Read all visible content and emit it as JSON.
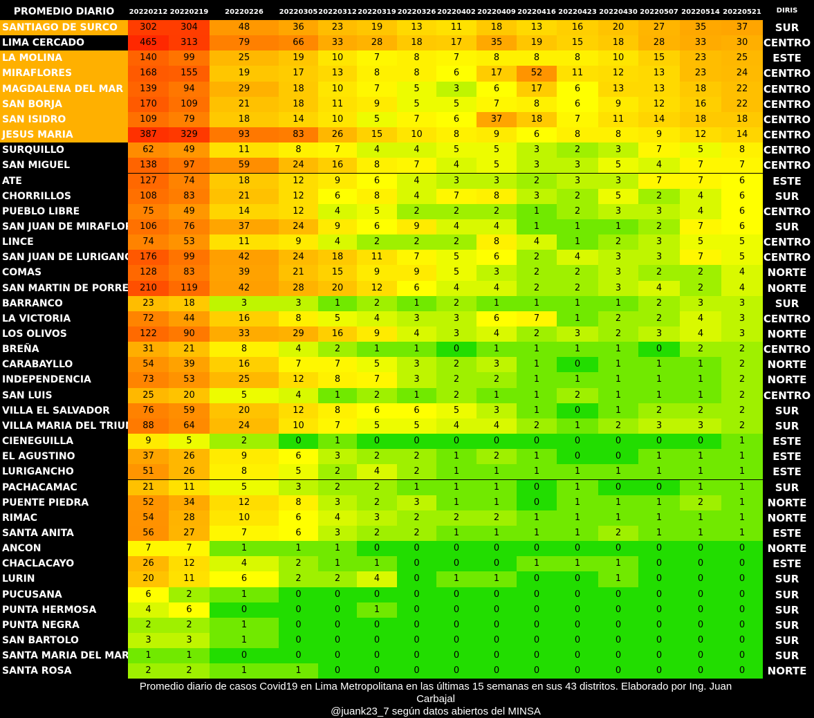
{
  "chart_data": {
    "type": "heatmap",
    "title": "PROMEDIO DIARIO",
    "region_header": "DIRIS",
    "columns": [
      "20220212",
      "20220219",
      "20220226",
      "20220305",
      "20220312",
      "20220319",
      "20220326",
      "20220402",
      "20220409",
      "20220416",
      "20220423",
      "20220430",
      "20220507",
      "20220514",
      "20220521"
    ],
    "highlight_color": "#ffb000",
    "rows": [
      {
        "name": "SANTIAGO DE SURCO",
        "values": [
          302,
          304,
          48,
          36,
          23,
          19,
          13,
          11,
          18,
          13,
          16,
          20,
          27,
          35,
          37
        ],
        "diris": "SUR",
        "highlight": true
      },
      {
        "name": "LIMA CERCADO",
        "values": [
          465,
          313,
          79,
          66,
          33,
          28,
          18,
          17,
          35,
          19,
          15,
          18,
          28,
          33,
          30
        ],
        "diris": "CENTRO",
        "highlight": false
      },
      {
        "name": "LA MOLINA",
        "values": [
          140,
          99,
          25,
          19,
          10,
          7,
          8,
          7,
          8,
          8,
          8,
          10,
          15,
          23,
          25
        ],
        "diris": "ESTE",
        "highlight": true
      },
      {
        "name": "MIRAFLORES",
        "values": [
          168,
          155,
          19,
          17,
          13,
          8,
          8,
          6,
          17,
          52,
          11,
          12,
          13,
          23,
          24
        ],
        "diris": "CENTRO",
        "highlight": true
      },
      {
        "name": "MAGDALENA DEL MAR",
        "values": [
          139,
          94,
          29,
          18,
          10,
          7,
          5,
          3,
          6,
          17,
          6,
          13,
          13,
          18,
          22
        ],
        "diris": "CENTRO",
        "highlight": true
      },
      {
        "name": "SAN BORJA",
        "values": [
          170,
          109,
          21,
          18,
          11,
          9,
          5,
          5,
          7,
          8,
          6,
          9,
          12,
          16,
          22
        ],
        "diris": "CENTRO",
        "highlight": true
      },
      {
        "name": "SAN ISIDRO",
        "values": [
          109,
          79,
          18,
          14,
          10,
          5,
          7,
          6,
          37,
          18,
          7,
          11,
          14,
          18,
          18
        ],
        "diris": "CENTRO",
        "highlight": true
      },
      {
        "name": "JESUS MARIA",
        "values": [
          387,
          329,
          93,
          83,
          26,
          15,
          10,
          8,
          9,
          6,
          8,
          8,
          9,
          12,
          14
        ],
        "diris": "CENTRO",
        "highlight": true
      },
      {
        "name": "SURQUILLO",
        "values": [
          62,
          49,
          11,
          8,
          7,
          4,
          4,
          5,
          5,
          3,
          2,
          3,
          7,
          5,
          8
        ],
        "diris": "CENTRO",
        "highlight": false
      },
      {
        "name": "SAN MIGUEL",
        "values": [
          138,
          97,
          59,
          24,
          16,
          8,
          7,
          4,
          5,
          3,
          3,
          5,
          4,
          7,
          7
        ],
        "diris": "CENTRO",
        "highlight": false
      },
      {
        "name": "ATE",
        "values": [
          127,
          74,
          18,
          12,
          9,
          6,
          4,
          3,
          3,
          2,
          3,
          3,
          7,
          7,
          6
        ],
        "diris": "ESTE",
        "highlight": false
      },
      {
        "name": "CHORRILLOS",
        "values": [
          108,
          83,
          21,
          12,
          6,
          8,
          4,
          7,
          8,
          3,
          2,
          5,
          2,
          4,
          6
        ],
        "diris": "SUR",
        "highlight": false
      },
      {
        "name": "PUEBLO LIBRE",
        "values": [
          75,
          49,
          14,
          12,
          4,
          5,
          2,
          2,
          2,
          1,
          2,
          3,
          3,
          4,
          6
        ],
        "diris": "CENTRO",
        "highlight": false
      },
      {
        "name": "SAN JUAN DE MIRAFLORES",
        "values": [
          106,
          76,
          37,
          24,
          9,
          6,
          9,
          4,
          4,
          1,
          1,
          1,
          2,
          7,
          6
        ],
        "diris": "SUR",
        "highlight": false
      },
      {
        "name": "LINCE",
        "values": [
          74,
          53,
          11,
          9,
          4,
          2,
          2,
          2,
          8,
          4,
          1,
          2,
          3,
          5,
          5
        ],
        "diris": "CENTRO",
        "highlight": false
      },
      {
        "name": "SAN JUAN DE LURIGANCHO",
        "values": [
          176,
          99,
          42,
          24,
          18,
          11,
          7,
          5,
          6,
          2,
          4,
          3,
          3,
          7,
          5
        ],
        "diris": "CENTRO",
        "highlight": false
      },
      {
        "name": "COMAS",
        "values": [
          128,
          83,
          39,
          21,
          15,
          9,
          9,
          5,
          3,
          2,
          2,
          3,
          2,
          2,
          4
        ],
        "diris": "NORTE",
        "highlight": false
      },
      {
        "name": "SAN MARTIN DE PORRES",
        "values": [
          210,
          119,
          42,
          28,
          20,
          12,
          6,
          4,
          4,
          2,
          2,
          3,
          4,
          2,
          4
        ],
        "diris": "NORTE",
        "highlight": false
      },
      {
        "name": "BARRANCO",
        "values": [
          23,
          18,
          3,
          3,
          1,
          2,
          1,
          2,
          1,
          1,
          1,
          1,
          2,
          3,
          3
        ],
        "diris": "SUR",
        "highlight": false
      },
      {
        "name": "LA VICTORIA",
        "values": [
          72,
          44,
          16,
          8,
          5,
          4,
          3,
          3,
          6,
          7,
          1,
          2,
          2,
          4,
          3
        ],
        "diris": "CENTRO",
        "highlight": false
      },
      {
        "name": "LOS OLIVOS",
        "values": [
          122,
          90,
          33,
          29,
          16,
          9,
          4,
          3,
          4,
          2,
          3,
          2,
          3,
          4,
          3
        ],
        "diris": "NORTE",
        "highlight": false
      },
      {
        "name": "BREÑA",
        "values": [
          31,
          21,
          8,
          4,
          2,
          1,
          1,
          0,
          1,
          1,
          1,
          1,
          0,
          2,
          2
        ],
        "diris": "CENTRO",
        "highlight": false
      },
      {
        "name": "CARABAYLLO",
        "values": [
          54,
          39,
          16,
          7,
          7,
          5,
          3,
          2,
          3,
          1,
          0,
          1,
          1,
          1,
          2
        ],
        "diris": "NORTE",
        "highlight": false
      },
      {
        "name": "INDEPENDENCIA",
        "values": [
          73,
          53,
          25,
          12,
          8,
          7,
          3,
          2,
          2,
          1,
          1,
          1,
          1,
          1,
          2
        ],
        "diris": "NORTE",
        "highlight": false
      },
      {
        "name": "SAN LUIS",
        "values": [
          25,
          20,
          5,
          4,
          1,
          2,
          1,
          2,
          1,
          1,
          2,
          1,
          1,
          1,
          2
        ],
        "diris": "CENTRO",
        "highlight": false
      },
      {
        "name": "VILLA EL SALVADOR",
        "values": [
          76,
          59,
          20,
          12,
          8,
          6,
          6,
          5,
          3,
          1,
          0,
          1,
          2,
          2,
          2
        ],
        "diris": "SUR",
        "highlight": false
      },
      {
        "name": "VILLA MARIA DEL TRIUNFO",
        "values": [
          88,
          64,
          24,
          10,
          7,
          5,
          5,
          4,
          4,
          2,
          1,
          2,
          3,
          3,
          2
        ],
        "diris": "SUR",
        "highlight": false
      },
      {
        "name": "CIENEGUILLA",
        "values": [
          9,
          5,
          2,
          0,
          1,
          0,
          0,
          0,
          0,
          0,
          0,
          0,
          0,
          0,
          1
        ],
        "diris": "ESTE",
        "highlight": false
      },
      {
        "name": "EL AGUSTINO",
        "values": [
          37,
          26,
          9,
          6,
          3,
          2,
          2,
          1,
          2,
          1,
          0,
          0,
          1,
          1,
          1
        ],
        "diris": "ESTE",
        "highlight": false
      },
      {
        "name": "LURIGANCHO",
        "values": [
          51,
          26,
          8,
          5,
          2,
          4,
          2,
          1,
          1,
          1,
          1,
          1,
          1,
          1,
          1
        ],
        "diris": "ESTE",
        "highlight": false
      },
      {
        "name": "PACHACAMAC",
        "values": [
          21,
          11,
          5,
          3,
          2,
          2,
          1,
          1,
          1,
          0,
          1,
          0,
          0,
          1,
          1
        ],
        "diris": "SUR",
        "highlight": false
      },
      {
        "name": "PUENTE PIEDRA",
        "values": [
          52,
          34,
          12,
          8,
          3,
          2,
          3,
          1,
          1,
          0,
          1,
          1,
          1,
          2,
          1
        ],
        "diris": "NORTE",
        "highlight": false
      },
      {
        "name": "RIMAC",
        "values": [
          54,
          28,
          10,
          6,
          4,
          3,
          2,
          2,
          2,
          1,
          1,
          1,
          1,
          1,
          1
        ],
        "diris": "NORTE",
        "highlight": false
      },
      {
        "name": "SANTA ANITA",
        "values": [
          56,
          27,
          7,
          6,
          3,
          2,
          2,
          1,
          1,
          1,
          1,
          2,
          1,
          1,
          1
        ],
        "diris": "ESTE",
        "highlight": false
      },
      {
        "name": "ANCON",
        "values": [
          7,
          7,
          1,
          1,
          1,
          0,
          0,
          0,
          0,
          0,
          0,
          0,
          0,
          0,
          0
        ],
        "diris": "NORTE",
        "highlight": false
      },
      {
        "name": "CHACLACAYO",
        "values": [
          26,
          12,
          4,
          2,
          1,
          1,
          0,
          0,
          0,
          1,
          1,
          1,
          0,
          0,
          0
        ],
        "diris": "ESTE",
        "highlight": false
      },
      {
        "name": "LURIN",
        "values": [
          20,
          11,
          6,
          2,
          2,
          4,
          0,
          1,
          1,
          0,
          0,
          1,
          0,
          0,
          0
        ],
        "diris": "SUR",
        "highlight": false
      },
      {
        "name": "PUCUSANA",
        "values": [
          6,
          2,
          1,
          0,
          0,
          0,
          0,
          0,
          0,
          0,
          0,
          0,
          0,
          0,
          0
        ],
        "diris": "SUR",
        "highlight": false
      },
      {
        "name": "PUNTA HERMOSA",
        "values": [
          4,
          6,
          0,
          0,
          0,
          1,
          0,
          0,
          0,
          0,
          0,
          0,
          0,
          0,
          0
        ],
        "diris": "SUR",
        "highlight": false
      },
      {
        "name": "PUNTA NEGRA",
        "values": [
          2,
          2,
          1,
          0,
          0,
          0,
          0,
          0,
          0,
          0,
          0,
          0,
          0,
          0,
          0
        ],
        "diris": "SUR",
        "highlight": false
      },
      {
        "name": "SAN BARTOLO",
        "values": [
          3,
          3,
          1,
          0,
          0,
          0,
          0,
          0,
          0,
          0,
          0,
          0,
          0,
          0,
          0
        ],
        "diris": "SUR",
        "highlight": false
      },
      {
        "name": "SANTA MARIA DEL MAR",
        "values": [
          1,
          1,
          0,
          0,
          0,
          0,
          0,
          0,
          0,
          0,
          0,
          0,
          0,
          0,
          0
        ],
        "diris": "SUR",
        "highlight": false
      },
      {
        "name": "SANTA ROSA",
        "values": [
          2,
          2,
          1,
          1,
          0,
          0,
          0,
          0,
          0,
          0,
          0,
          0,
          0,
          0,
          0
        ],
        "diris": "NORTE",
        "highlight": false
      }
    ],
    "color_scale": [
      "#22dd00",
      "#ffff00",
      "#ff3300"
    ]
  },
  "caption": {
    "line1": "Promedio diario de casos Covid19 en Lima Metropolitana en las últimas 15 semanas en sus 43 distritos. Elaborado por Ing. Juan Carbajal",
    "line2": "@juank23_7 según datos abiertos del MINSA"
  }
}
